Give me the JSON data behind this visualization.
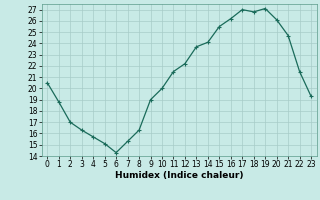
{
  "x": [
    0,
    1,
    2,
    3,
    4,
    5,
    6,
    7,
    8,
    9,
    10,
    11,
    12,
    13,
    14,
    15,
    16,
    17,
    18,
    19,
    20,
    21,
    22,
    23
  ],
  "y": [
    20.5,
    18.8,
    17.0,
    16.3,
    15.7,
    15.1,
    14.3,
    15.3,
    16.3,
    19.0,
    20.0,
    21.5,
    22.2,
    23.7,
    24.1,
    25.5,
    26.2,
    27.0,
    26.8,
    27.1,
    26.1,
    24.7,
    21.5,
    19.3
  ],
  "xlabel": "Humidex (Indice chaleur)",
  "xlim": [
    -0.5,
    23.5
  ],
  "ylim": [
    14,
    27.5
  ],
  "yticks": [
    14,
    15,
    16,
    17,
    18,
    19,
    20,
    21,
    22,
    23,
    24,
    25,
    26,
    27
  ],
  "xticks": [
    0,
    1,
    2,
    3,
    4,
    5,
    6,
    7,
    8,
    9,
    10,
    11,
    12,
    13,
    14,
    15,
    16,
    17,
    18,
    19,
    20,
    21,
    22,
    23
  ],
  "line_color": "#1a6b5a",
  "marker": "+",
  "bg_color": "#c8eae6",
  "grid_color": "#a8ccc8",
  "tick_fontsize": 5.5,
  "label_fontsize": 6.5
}
